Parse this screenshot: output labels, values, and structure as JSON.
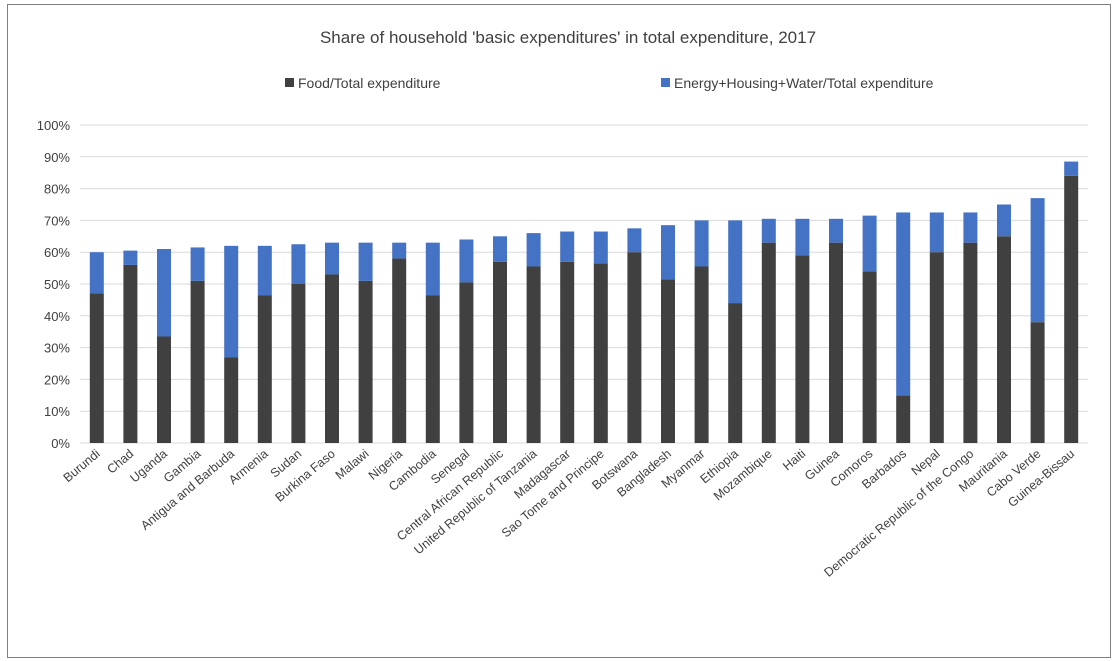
{
  "chart_data": {
    "type": "bar",
    "stacked": true,
    "title": "Share of household 'basic expenditures' in total expenditure, 2017",
    "xlabel": "",
    "ylabel": "",
    "ylim": [
      0,
      100
    ],
    "yticks": [
      "0%",
      "10%",
      "20%",
      "30%",
      "40%",
      "50%",
      "60%",
      "70%",
      "80%",
      "90%",
      "100%"
    ],
    "grid": true,
    "legend_position": "top",
    "categories": [
      "Burundi",
      "Chad",
      "Uganda",
      "Gambia",
      "Antigua and Barbuda",
      "Armenia",
      "Sudan",
      "Burkina Faso",
      "Malawi",
      "Nigeria",
      "Cambodia",
      "Senegal",
      "Central African Republic",
      "United Republic of Tanzania",
      "Madagascar",
      "Sao Tome and Principe",
      "Botswana",
      "Bangladesh",
      "Myanmar",
      "Ethiopia",
      "Mozambique",
      "Haiti",
      "Guinea",
      "Comoros",
      "Barbados",
      "Nepal",
      "Democratic Republic of the Congo",
      "Mauritania",
      "Cabo Verde",
      "Guinea-Bissau"
    ],
    "series": [
      {
        "name": "Food/Total expenditure",
        "color": "#404040",
        "values": [
          47,
          56,
          33.5,
          51,
          27,
          46.5,
          50,
          53,
          51,
          58,
          46.5,
          50.5,
          57,
          55.5,
          57,
          56.5,
          60,
          51.5,
          55.5,
          44,
          63,
          59,
          63,
          54,
          15,
          60,
          63,
          65,
          38,
          84
        ]
      },
      {
        "name": "Energy+Housing+Water/Total expenditure",
        "color": "#4472c4",
        "values": [
          13,
          4.5,
          27.5,
          10.5,
          35,
          15.5,
          12.5,
          10,
          12,
          5,
          16.5,
          13.5,
          8,
          10.5,
          9.5,
          10,
          7.5,
          17,
          14.5,
          26,
          7.5,
          11.5,
          7.5,
          17.5,
          57.5,
          12.5,
          9.5,
          10,
          39,
          4.5
        ]
      }
    ]
  }
}
